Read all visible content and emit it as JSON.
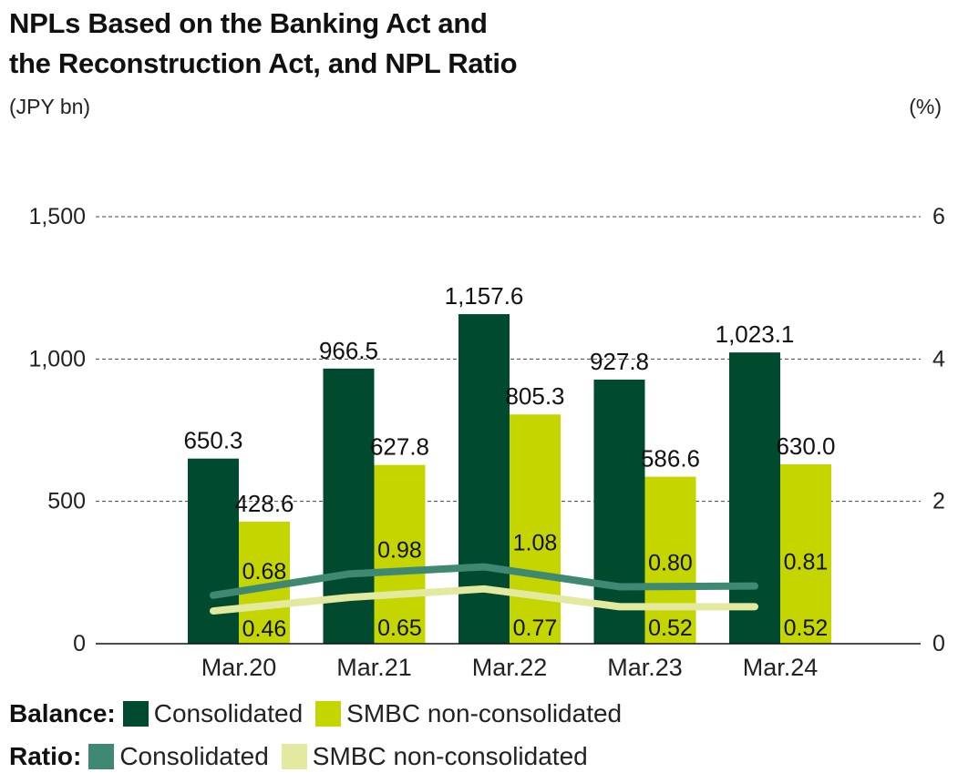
{
  "title_line1": "NPLs Based on the Banking Act and",
  "title_line2": "the Reconstruction Act, and NPL Ratio",
  "left_unit": "(JPY bn)",
  "right_unit": "(%)",
  "legend": {
    "balance_title": "Balance:",
    "ratio_title": "Ratio:",
    "balance_consolidated": "Consolidated",
    "balance_smbc": "SMBC non-consolidated",
    "ratio_consolidated": "Consolidated",
    "ratio_smbc": "SMBC non-consolidated"
  },
  "colors": {
    "bar_consolidated": "#004a2f",
    "bar_smbc": "#c5d500",
    "line_consolidated": "#3f8871",
    "line_smbc": "#e3eaa0"
  },
  "chart_data": {
    "type": "bar",
    "categories": [
      "Mar.20",
      "Mar.21",
      "Mar.22",
      "Mar.23",
      "Mar.24"
    ],
    "series": [
      {
        "values": [
          650.3,
          966.5,
          1157.6,
          927.8,
          1023.1
        ],
        "labels": [
          "650.3",
          "966.5",
          "1,157.6",
          "927.8",
          "1,023.1"
        ]
      },
      {
        "values": [
          428.6,
          627.8,
          805.3,
          586.6,
          630.0
        ],
        "labels": [
          "428.6",
          "627.8",
          "805.3",
          "586.6",
          "630.0"
        ]
      }
    ],
    "line_series": [
      {
        "axis": "right",
        "values": [
          0.68,
          0.98,
          1.08,
          0.8,
          0.81
        ],
        "labels": [
          "0.68",
          "0.98",
          "1.08",
          "0.80",
          "0.81"
        ]
      },
      {
        "axis": "right",
        "values": [
          0.46,
          0.65,
          0.77,
          0.52,
          0.52
        ],
        "labels": [
          "0.46",
          "0.65",
          "0.77",
          "0.52",
          "0.52"
        ]
      }
    ],
    "y_left": {
      "ylim": [
        0,
        1500
      ],
      "ticks": [
        0,
        500,
        1000,
        1500
      ],
      "tick_labels": [
        "0",
        "500",
        "1,000",
        "1,500"
      ]
    },
    "y_right": {
      "ylim": [
        0,
        6
      ],
      "ticks": [
        0,
        2,
        4,
        6
      ],
      "tick_labels": [
        "0",
        "2",
        "4",
        "6"
      ]
    },
    "grid": "dashed horizontal"
  }
}
